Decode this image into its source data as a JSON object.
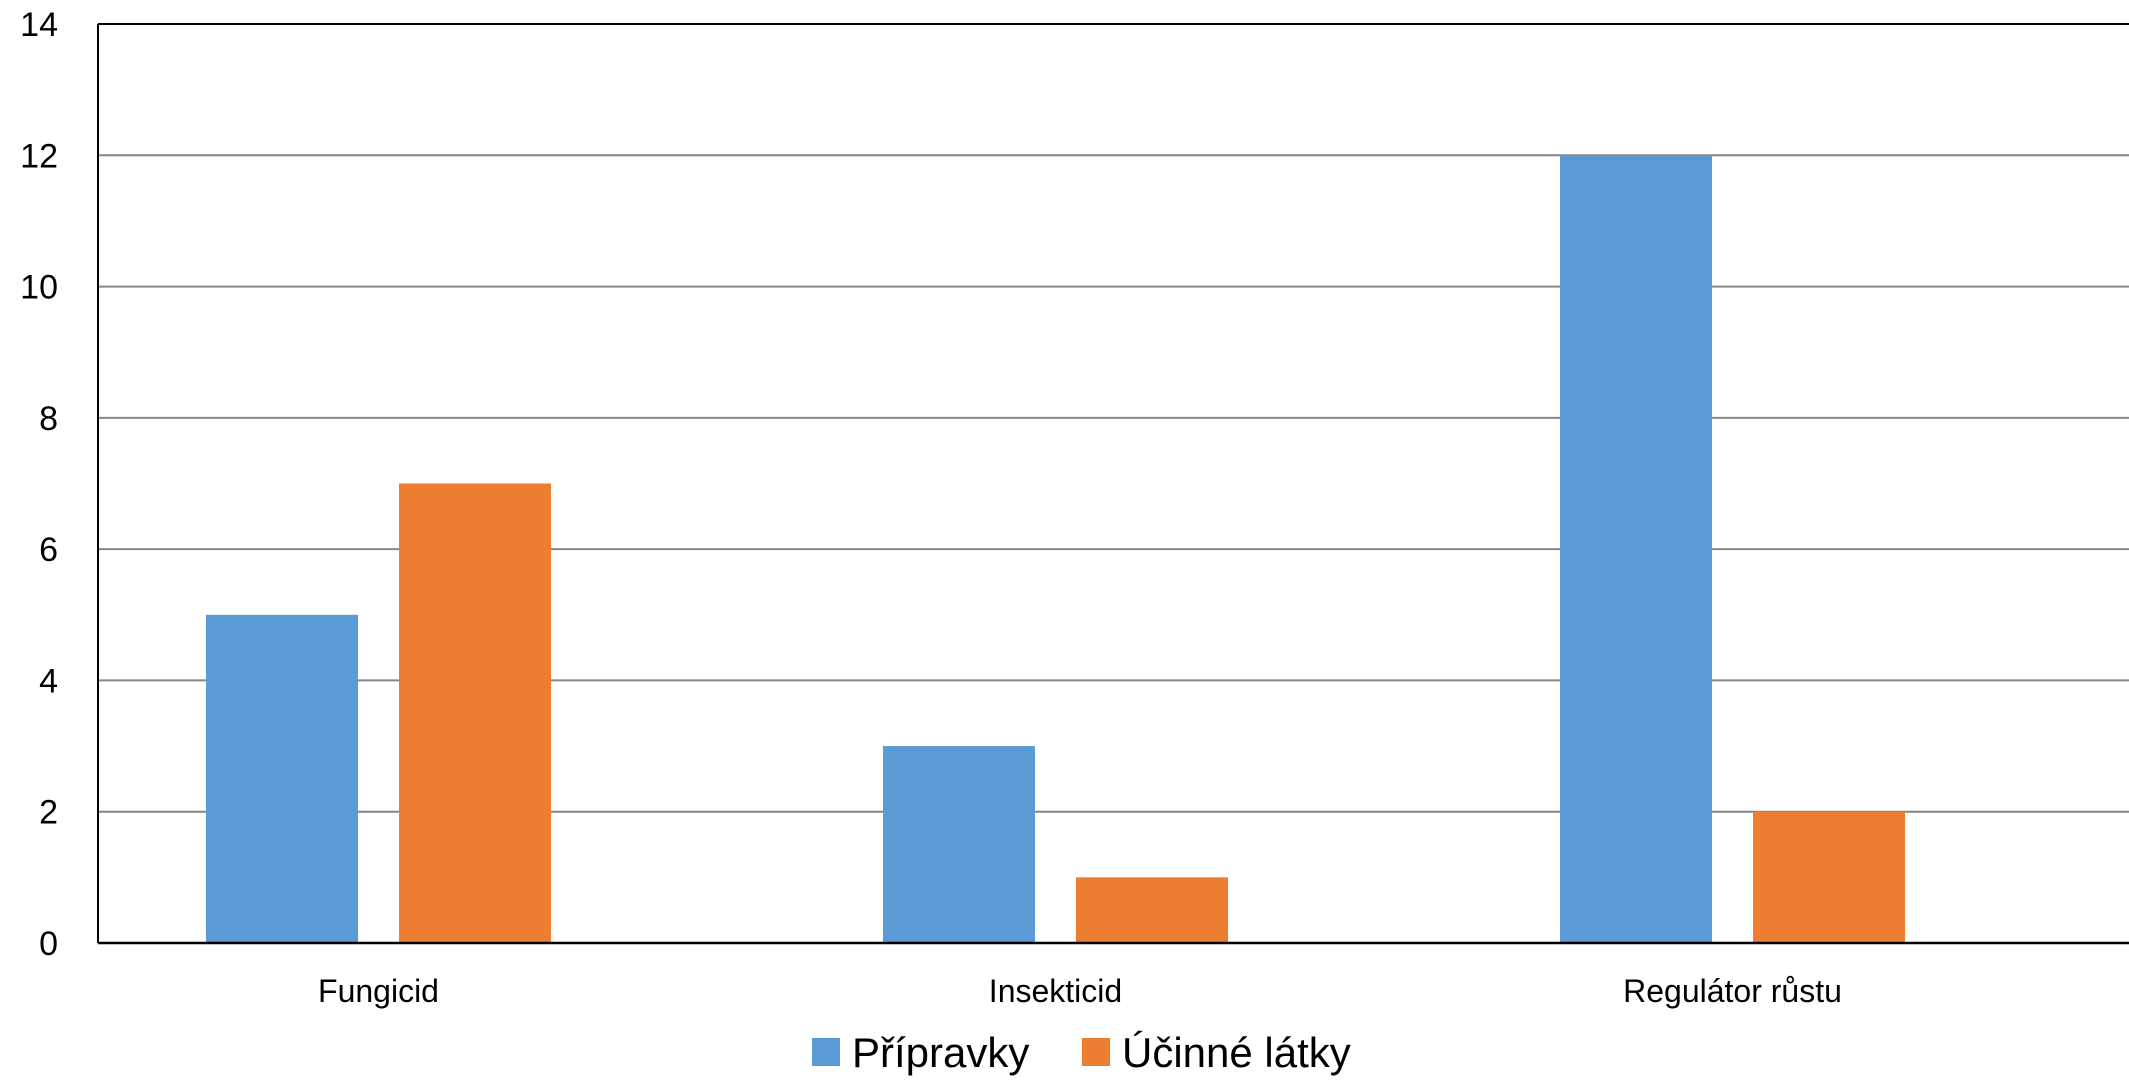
{
  "chart_data": {
    "type": "bar",
    "title": "",
    "xlabel": "",
    "ylabel": "",
    "categories": [
      "Fungicid",
      "Insekticid",
      "Regulátor růstu"
    ],
    "series": [
      {
        "name": "Přípravky",
        "color": "#5b9bd5",
        "values": [
          5,
          3,
          12
        ]
      },
      {
        "name": "Účinné látky",
        "color": "#ed7d31",
        "values": [
          7,
          1,
          2
        ]
      }
    ],
    "ylim": [
      0,
      14
    ],
    "yticks": [
      0,
      2,
      4,
      6,
      8,
      10,
      12,
      14
    ],
    "grid": true,
    "gridline_color": "#868686",
    "axis_color": "#000000",
    "legend_position": "bottom"
  }
}
